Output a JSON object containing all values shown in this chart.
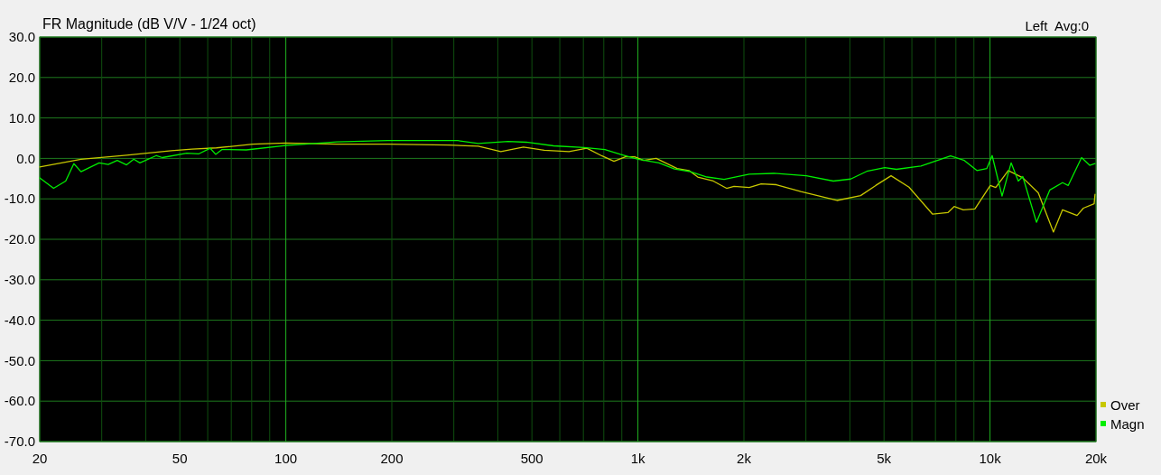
{
  "chart_data": {
    "type": "line",
    "title": "FR Magnitude (dB V/V - 1/24 oct)",
    "annotations": [
      "Left  Avg:0"
    ],
    "log": "x",
    "grid": true,
    "legend": "bottom right",
    "marker": "none",
    "line_style": "solid",
    "xlim": [
      20,
      20000
    ],
    "ylim": [
      -70,
      30
    ],
    "xticks": [
      {
        "value": 20,
        "label": "20"
      },
      {
        "value": 30,
        "label": null
      },
      {
        "value": 40,
        "label": null
      },
      {
        "value": 50,
        "label": "50"
      },
      {
        "value": 60,
        "label": null
      },
      {
        "value": 70,
        "label": null
      },
      {
        "value": 80,
        "label": null
      },
      {
        "value": 90,
        "label": null
      },
      {
        "value": 100,
        "label": "100"
      },
      {
        "value": 200,
        "label": "200"
      },
      {
        "value": 300,
        "label": null
      },
      {
        "value": 400,
        "label": null
      },
      {
        "value": 500,
        "label": "500"
      },
      {
        "value": 600,
        "label": null
      },
      {
        "value": 700,
        "label": null
      },
      {
        "value": 800,
        "label": null
      },
      {
        "value": 900,
        "label": null
      },
      {
        "value": 1000,
        "label": "1k"
      },
      {
        "value": 2000,
        "label": "2k"
      },
      {
        "value": 3000,
        "label": null
      },
      {
        "value": 4000,
        "label": null
      },
      {
        "value": 5000,
        "label": "5k"
      },
      {
        "value": 6000,
        "label": null
      },
      {
        "value": 7000,
        "label": null
      },
      {
        "value": 8000,
        "label": null
      },
      {
        "value": 9000,
        "label": null
      },
      {
        "value": 10000,
        "label": "10k"
      },
      {
        "value": 20000,
        "label": "20k"
      }
    ],
    "yticks": [
      {
        "value": 30,
        "label": "30.0"
      },
      {
        "value": 20,
        "label": "20.0"
      },
      {
        "value": 10,
        "label": "10.0"
      },
      {
        "value": 0,
        "label": "0.0"
      },
      {
        "value": -10,
        "label": "-10.0"
      },
      {
        "value": -20,
        "label": "-20.0"
      },
      {
        "value": -30,
        "label": "-30.0"
      },
      {
        "value": -40,
        "label": "-40.0"
      },
      {
        "value": -50,
        "label": "-50.0"
      },
      {
        "value": -60,
        "label": "-60.0"
      },
      {
        "value": -70,
        "label": "-70.0"
      }
    ],
    "series": [
      {
        "name": "Over",
        "color": "#c8c800",
        "x": [
          20,
          26.2,
          35.3,
          47.3,
          54.2,
          63.5,
          80.6,
          100,
          139.5,
          195,
          290,
          352,
          408,
          473,
          542,
          637,
          716,
          791,
          855,
          922,
          979,
          1038,
          1127,
          1292,
          1396,
          1479,
          1637,
          1786,
          1875,
          2071,
          2239,
          2473,
          2903,
          3675,
          4290,
          4735,
          5236,
          5887,
          6871,
          7590,
          7910,
          8395,
          9059,
          10020,
          10380,
          11270,
          12390,
          13710,
          15140,
          16070,
          17670,
          18420,
          19760,
          19870
        ],
        "values": [
          -2.1,
          -0.2,
          0.8,
          1.9,
          2.3,
          2.6,
          3.5,
          3.8,
          3.5,
          3.5,
          3.3,
          3.0,
          1.7,
          2.8,
          2.0,
          1.7,
          2.5,
          0.6,
          -0.7,
          0.4,
          0.4,
          -0.5,
          0.0,
          -2.5,
          -3.0,
          -4.6,
          -5.6,
          -7.4,
          -6.9,
          -7.2,
          -6.3,
          -6.5,
          -8.2,
          -10.4,
          -9.2,
          -6.7,
          -4.3,
          -7.1,
          -13.8,
          -13.4,
          -11.9,
          -12.7,
          -12.5,
          -6.7,
          -7.2,
          -3.0,
          -4.8,
          -8.5,
          -18.2,
          -12.7,
          -14.1,
          -12.3,
          -11.2,
          -8.9
        ]
      },
      {
        "name": "Magn",
        "color": "#00ee00",
        "x": [
          20,
          21.9,
          23.7,
          25.0,
          26.2,
          29.5,
          31.3,
          33.2,
          35.3,
          37.0,
          38.5,
          42.9,
          44.6,
          52.3,
          56.5,
          61.0,
          63.2,
          65.9,
          77.2,
          100,
          139.5,
          195,
          308,
          352,
          428,
          482,
          576,
          703,
          806,
          891,
          1002,
          1148,
          1270,
          1396,
          1571,
          1757,
          2071,
          2433,
          3008,
          3590,
          4020,
          4467,
          5025,
          5422,
          6366,
          7727,
          8453,
          9177,
          9795,
          10140,
          10820,
          11480,
          12030,
          12390,
          13550,
          14790,
          16070,
          16670,
          18200,
          19190,
          19870
        ],
        "values": [
          -4.8,
          -7.4,
          -5.6,
          -1.3,
          -3.3,
          -1.1,
          -1.5,
          -0.5,
          -1.6,
          -0.2,
          -1.1,
          0.7,
          0.2,
          1.3,
          1.1,
          2.5,
          1.0,
          2.2,
          2.1,
          3.2,
          4.1,
          4.4,
          4.4,
          3.7,
          4.2,
          4.0,
          3.1,
          2.7,
          2.2,
          1.0,
          -0.2,
          -1.1,
          -2.6,
          -3.2,
          -4.6,
          -5.2,
          -3.9,
          -3.7,
          -4.3,
          -5.6,
          -5.1,
          -3.2,
          -2.3,
          -2.7,
          -1.9,
          0.6,
          -0.5,
          -3.0,
          -2.5,
          0.7,
          -9.3,
          -1.1,
          -5.6,
          -4.5,
          -15.8,
          -7.8,
          -6.0,
          -6.7,
          0.2,
          -1.7,
          -1.3
        ]
      }
    ]
  }
}
